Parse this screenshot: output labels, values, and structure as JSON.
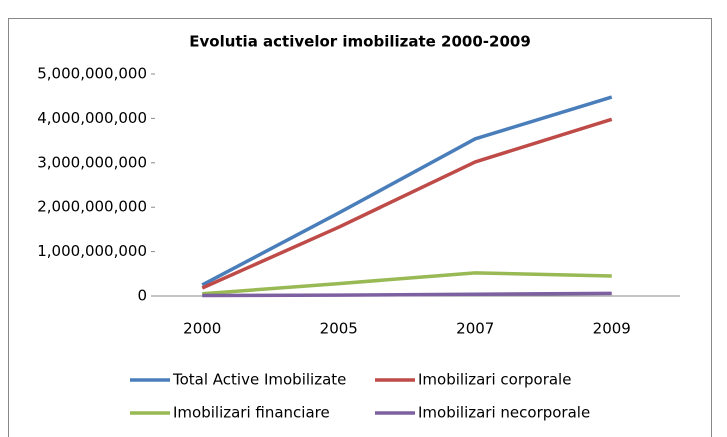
{
  "chart_data": {
    "type": "line",
    "title": "Evolutia activelor imobilizate 2000-2009",
    "categories": [
      "2000",
      "2005",
      "2007",
      "2009"
    ],
    "series": [
      {
        "name": "Total Active Imobilizate",
        "color": "#4a7ebb",
        "values": [
          250000000,
          1870000000,
          3540000000,
          4480000000
        ]
      },
      {
        "name": "Imobilizari corporale",
        "color": "#be4b48",
        "values": [
          180000000,
          1550000000,
          3020000000,
          3980000000
        ]
      },
      {
        "name": "Imobilizari financiare",
        "color": "#98b954",
        "values": [
          50000000,
          280000000,
          520000000,
          450000000
        ]
      },
      {
        "name": "Imobilizari necorporale",
        "color": "#7d60a0",
        "values": [
          10000000,
          20000000,
          40000000,
          60000000
        ]
      }
    ],
    "ylim": [
      0,
      5000000000
    ],
    "yticks": [
      0,
      {
        "value": 1000000000,
        "label": "1,000,000,000"
      },
      {
        "value": 2000000000,
        "label": "2,000,000,000"
      },
      {
        "value": 3000000000,
        "label": "3,000,000,000"
      },
      {
        "value": 4000000000,
        "label": "4,000,000,000"
      },
      {
        "value": 5000000000,
        "label": "5,000,000,000"
      }
    ],
    "grid": false
  }
}
